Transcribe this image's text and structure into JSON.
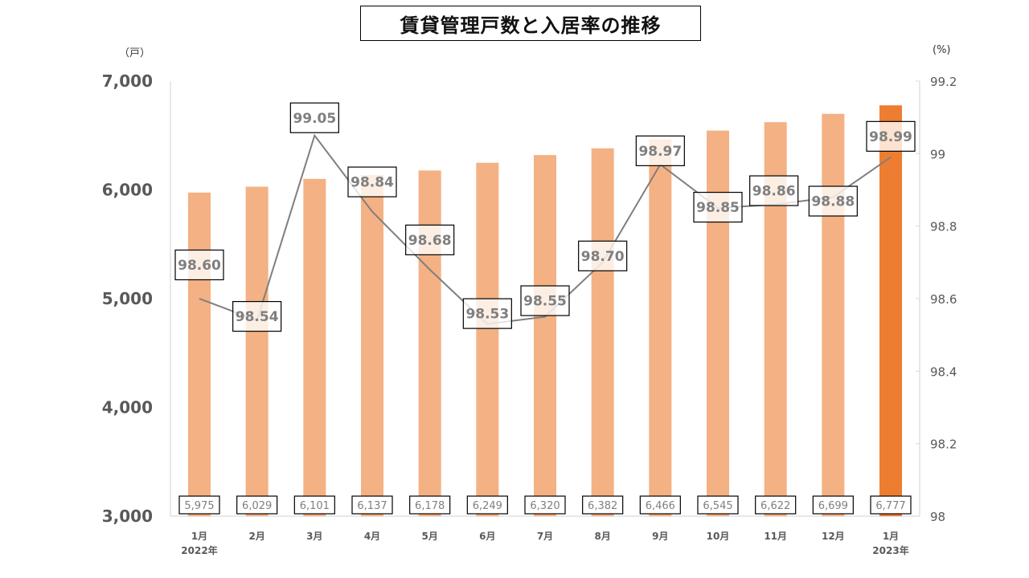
{
  "chart_data": {
    "type": "bar+line",
    "title": "賃貸管理戸数と入居率の推移",
    "left_axis_unit": "（戸）",
    "right_axis_unit": "(%)",
    "categories": [
      "1月",
      "2月",
      "3月",
      "4月",
      "5月",
      "6月",
      "7月",
      "8月",
      "9月",
      "10月",
      "11月",
      "12月",
      "1月"
    ],
    "category_years": [
      "2022年",
      "",
      "",
      "",
      "",
      "",
      "",
      "",
      "",
      "",
      "",
      "",
      "2023年"
    ],
    "series": [
      {
        "name": "賃貸管理戸数",
        "kind": "bar",
        "axis": "left",
        "values": [
          5975,
          6029,
          6101,
          6137,
          6178,
          6249,
          6320,
          6382,
          6466,
          6545,
          6622,
          6699,
          6777
        ],
        "labels": [
          "5,975",
          "6,029",
          "6,101",
          "6,137",
          "6,178",
          "6,249",
          "6,320",
          "6,382",
          "6,466",
          "6,545",
          "6,622",
          "6,699",
          "6,777"
        ],
        "color": "#f4b183",
        "highlight_color": "#ed7d31",
        "highlight_index": 12
      },
      {
        "name": "入居率",
        "kind": "line",
        "axis": "right",
        "values": [
          98.6,
          98.54,
          99.05,
          98.84,
          98.68,
          98.53,
          98.55,
          98.7,
          98.97,
          98.85,
          98.86,
          98.88,
          98.99
        ],
        "labels": [
          "98.60",
          "98.54",
          "99.05",
          "98.84",
          "98.68",
          "98.53",
          "98.55",
          "98.70",
          "98.97",
          "98.85",
          "98.86",
          "98.88",
          "98.99"
        ],
        "color": "#7f7f7f"
      }
    ],
    "left_axis": {
      "min": 3000,
      "max": 7000,
      "ticks": [
        3000,
        4000,
        5000,
        6000,
        7000
      ],
      "tick_labels": [
        "3,000",
        "4,000",
        "5,000",
        "6,000",
        "7,000"
      ]
    },
    "right_axis": {
      "min": 98,
      "max": 99.2,
      "ticks": [
        98,
        98.2,
        98.4,
        98.6,
        98.8,
        99,
        99.2
      ],
      "tick_labels": [
        "98",
        "98.2",
        "98.4",
        "98.6",
        "98.8",
        "99",
        "99.2"
      ]
    },
    "grid": false,
    "legend": "none"
  }
}
